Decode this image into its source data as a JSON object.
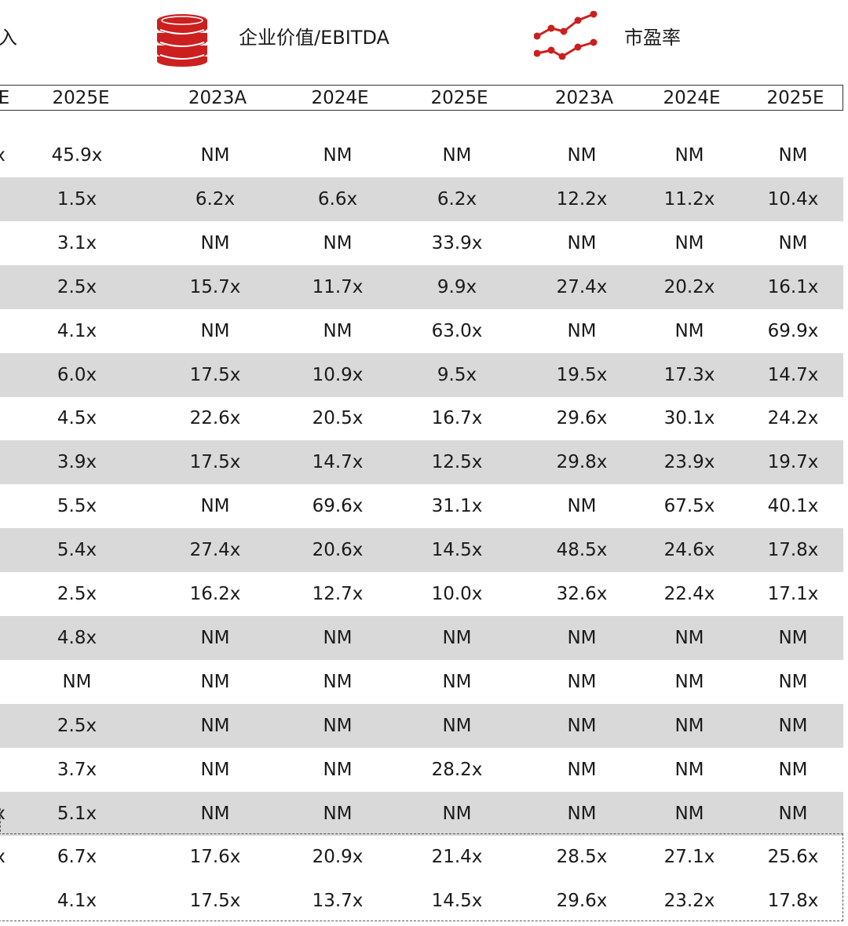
{
  "legend": {
    "partial_left_label": "入",
    "ev_ebitda_label": "企业价值/EBITDA",
    "pe_label": "市盈率",
    "ev_icon": "coin-stack-icon",
    "pe_icon": "line-chart-icon",
    "accent_color": "#cc1f1f"
  },
  "header": {
    "partial_col": "E",
    "col1": "2025E",
    "ev": [
      "2023A",
      "2024E",
      "2025E"
    ],
    "pe": [
      "2023A",
      "2024E",
      "2025E"
    ]
  },
  "rows": [
    {
      "partial": "x",
      "c1": "45.9x",
      "ev1": "NM",
      "ev2": "NM",
      "ev3": "NM",
      "pe1": "NM",
      "pe2": "NM",
      "pe3": "NM"
    },
    {
      "partial": "",
      "c1": "1.5x",
      "ev1": "6.2x",
      "ev2": "6.6x",
      "ev3": "6.2x",
      "pe1": "12.2x",
      "pe2": "11.2x",
      "pe3": "10.4x"
    },
    {
      "partial": "",
      "c1": "3.1x",
      "ev1": "NM",
      "ev2": "NM",
      "ev3": "33.9x",
      "pe1": "NM",
      "pe2": "NM",
      "pe3": "NM"
    },
    {
      "partial": "",
      "c1": "2.5x",
      "ev1": "15.7x",
      "ev2": "11.7x",
      "ev3": "9.9x",
      "pe1": "27.4x",
      "pe2": "20.2x",
      "pe3": "16.1x"
    },
    {
      "partial": "",
      "c1": "4.1x",
      "ev1": "NM",
      "ev2": "NM",
      "ev3": "63.0x",
      "pe1": "NM",
      "pe2": "NM",
      "pe3": "69.9x"
    },
    {
      "partial": "",
      "c1": "6.0x",
      "ev1": "17.5x",
      "ev2": "10.9x",
      "ev3": "9.5x",
      "pe1": "19.5x",
      "pe2": "17.3x",
      "pe3": "14.7x"
    },
    {
      "partial": "",
      "c1": "4.5x",
      "ev1": "22.6x",
      "ev2": "20.5x",
      "ev3": "16.7x",
      "pe1": "29.6x",
      "pe2": "30.1x",
      "pe3": "24.2x"
    },
    {
      "partial": "",
      "c1": "3.9x",
      "ev1": "17.5x",
      "ev2": "14.7x",
      "ev3": "12.5x",
      "pe1": "29.8x",
      "pe2": "23.9x",
      "pe3": "19.7x"
    },
    {
      "partial": "",
      "c1": "5.5x",
      "ev1": "NM",
      "ev2": "69.6x",
      "ev3": "31.1x",
      "pe1": "NM",
      "pe2": "67.5x",
      "pe3": "40.1x"
    },
    {
      "partial": "",
      "c1": "5.4x",
      "ev1": "27.4x",
      "ev2": "20.6x",
      "ev3": "14.5x",
      "pe1": "48.5x",
      "pe2": "24.6x",
      "pe3": "17.8x"
    },
    {
      "partial": "",
      "c1": "2.5x",
      "ev1": "16.2x",
      "ev2": "12.7x",
      "ev3": "10.0x",
      "pe1": "32.6x",
      "pe2": "22.4x",
      "pe3": "17.1x"
    },
    {
      "partial": "",
      "c1": "4.8x",
      "ev1": "NM",
      "ev2": "NM",
      "ev3": "NM",
      "pe1": "NM",
      "pe2": "NM",
      "pe3": "NM"
    },
    {
      "partial": "",
      "c1": "NM",
      "ev1": "NM",
      "ev2": "NM",
      "ev3": "NM",
      "pe1": "NM",
      "pe2": "NM",
      "pe3": "NM"
    },
    {
      "partial": "",
      "c1": "2.5x",
      "ev1": "NM",
      "ev2": "NM",
      "ev3": "NM",
      "pe1": "NM",
      "pe2": "NM",
      "pe3": "NM"
    },
    {
      "partial": "",
      "c1": "3.7x",
      "ev1": "NM",
      "ev2": "NM",
      "ev3": "28.2x",
      "pe1": "NM",
      "pe2": "NM",
      "pe3": "NM"
    },
    {
      "partial": "x",
      "c1": "5.1x",
      "ev1": "NM",
      "ev2": "NM",
      "ev3": "NM",
      "pe1": "NM",
      "pe2": "NM",
      "pe3": "NM"
    },
    {
      "partial": "x",
      "c1": "6.7x",
      "ev1": "17.6x",
      "ev2": "20.9x",
      "ev3": "21.4x",
      "pe1": "28.5x",
      "pe2": "27.1x",
      "pe3": "25.6x"
    },
    {
      "partial": "",
      "c1": "4.1x",
      "ev1": "17.5x",
      "ev2": "13.7x",
      "ev3": "14.5x",
      "pe1": "29.6x",
      "pe2": "23.2x",
      "pe3": "17.8x"
    }
  ]
}
